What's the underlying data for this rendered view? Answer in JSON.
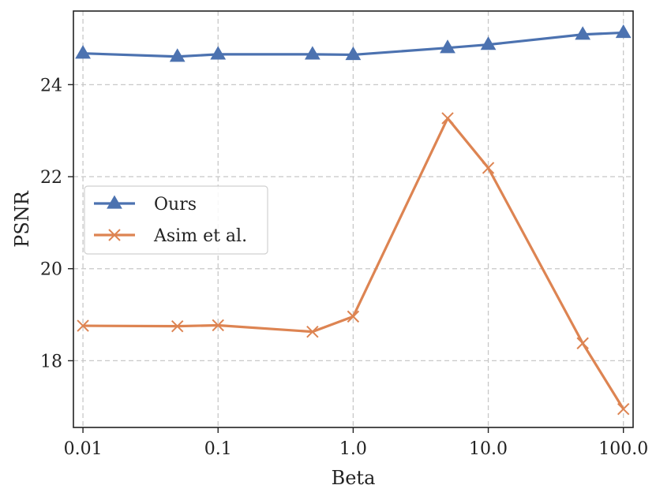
{
  "chart_data": {
    "type": "line",
    "xlabel": "Beta",
    "ylabel": "PSNR",
    "x_scale": "log",
    "x_ticks": [
      0.01,
      0.1,
      1.0,
      10.0,
      100.0
    ],
    "x_tick_labels": [
      "0.01",
      "0.1",
      "1.0",
      "10.0",
      "100.0"
    ],
    "y_ticks": [
      18,
      20,
      22,
      24
    ],
    "y_tick_labels": [
      "18",
      "20",
      "22",
      "24"
    ],
    "xlim": [
      0.0085,
      118
    ],
    "ylim": [
      16.55,
      25.6
    ],
    "grid": true,
    "legend_position": "center-left",
    "x": [
      0.01,
      0.05,
      0.1,
      0.5,
      1.0,
      5.0,
      10.0,
      50.0,
      100.0
    ],
    "series": [
      {
        "name": "Ours",
        "color": "#4c72b0",
        "marker": "triangle",
        "values": [
          24.68,
          24.61,
          24.66,
          24.66,
          24.65,
          24.8,
          24.87,
          25.09,
          25.13
        ]
      },
      {
        "name": "Asim et al.",
        "color": "#dd8452",
        "marker": "x",
        "values": [
          18.76,
          18.75,
          18.77,
          18.63,
          18.96,
          23.27,
          22.19,
          18.38,
          16.95
        ]
      }
    ]
  }
}
